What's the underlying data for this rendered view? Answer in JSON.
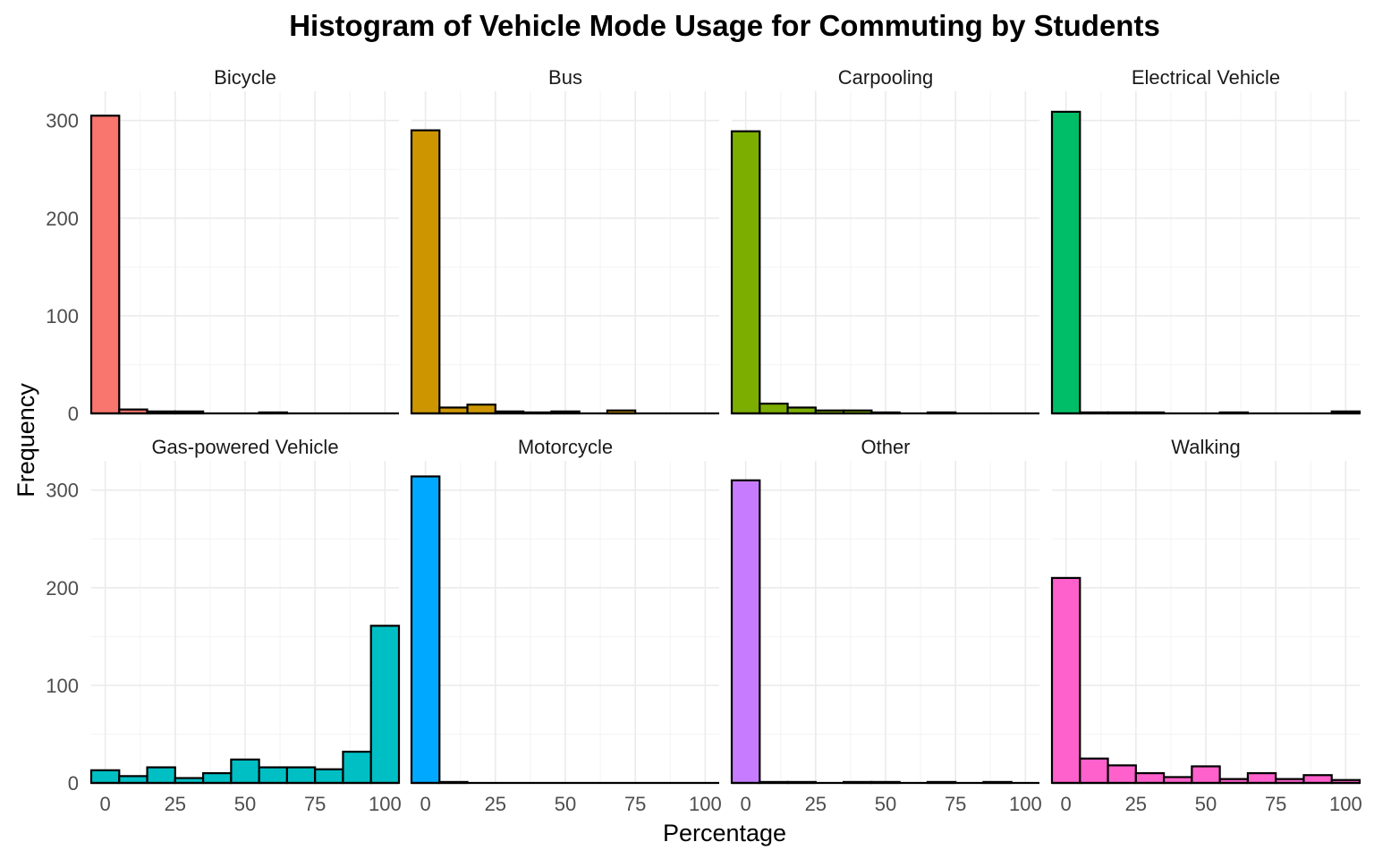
{
  "chart_data": {
    "type": "bar",
    "title": "Histogram of Vehicle Mode Usage for Commuting by Students",
    "xlabel": "Percentage",
    "ylabel": "Frequency",
    "xlim": [
      -5,
      105
    ],
    "ylim": [
      0,
      330
    ],
    "x_ticks": [
      "0",
      "25",
      "50",
      "75",
      "100"
    ],
    "y_ticks": [
      "0",
      "100",
      "200",
      "300"
    ],
    "bin_centers": [
      0,
      10,
      20,
      30,
      40,
      50,
      60,
      70,
      80,
      90,
      100
    ],
    "grid": true,
    "legend": "none",
    "layout": "facet grid, 2 rows x 4 columns",
    "series": [
      {
        "name": "Bicycle",
        "color": "#F8766D",
        "values": [
          305,
          4,
          2,
          2,
          0,
          0,
          1,
          0,
          0,
          0,
          0
        ]
      },
      {
        "name": "Bus",
        "color": "#CD9600",
        "values": [
          290,
          6,
          9,
          2,
          1,
          2,
          0,
          3,
          0,
          0,
          0
        ]
      },
      {
        "name": "Carpooling",
        "color": "#7CAE00",
        "values": [
          289,
          10,
          6,
          3,
          3,
          1,
          0,
          1,
          0,
          0,
          0
        ]
      },
      {
        "name": "Electrical Vehicle",
        "color": "#00BE67",
        "values": [
          309,
          1,
          1,
          1,
          0,
          0,
          1,
          0,
          0,
          0,
          2
        ]
      },
      {
        "name": "Gas-powered Vehicle",
        "color": "#00BFC4",
        "values": [
          13,
          7,
          16,
          5,
          10,
          24,
          16,
          16,
          14,
          32,
          161
        ]
      },
      {
        "name": "Motorcycle",
        "color": "#00A9FF",
        "values": [
          314,
          1,
          0,
          0,
          0,
          0,
          0,
          0,
          0,
          0,
          0
        ]
      },
      {
        "name": "Other",
        "color": "#C77CFF",
        "values": [
          310,
          1,
          1,
          0,
          1,
          1,
          0,
          1,
          0,
          1,
          0
        ]
      },
      {
        "name": "Walking",
        "color": "#FF61CC",
        "values": [
          210,
          25,
          18,
          10,
          6,
          17,
          4,
          10,
          4,
          8,
          3
        ]
      }
    ]
  }
}
